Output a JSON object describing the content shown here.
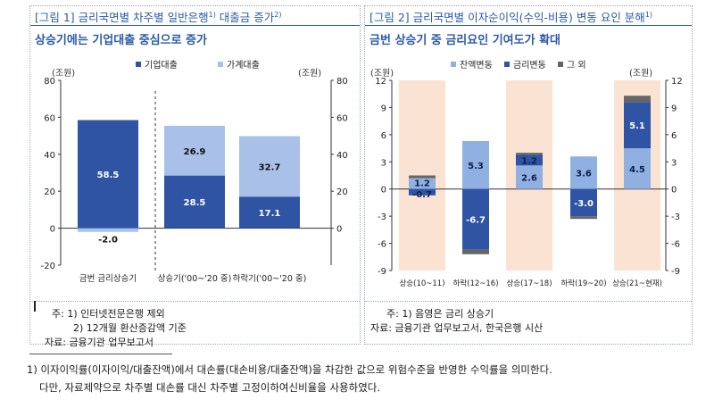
{
  "left_panel": {
    "title_prefix": "[그림 1] 금리국면별 차주별 일반은행",
    "title_sup1": "1)",
    "title_mid": " 대출금 증가",
    "title_sup2": "2)",
    "subtitle": "상승기에는 기업대출 중심으로 증가",
    "note1": "주: 1) 인터넷전문은행 제외",
    "note2": "2) 12개월 환산증감액 기준",
    "source": "자료: 금융기관 업무보고서"
  },
  "right_panel": {
    "title_prefix": "[그림 2] 금리국면별 이자순이익(수익-비용) 변동 요인 분해",
    "title_sup": "1)",
    "subtitle": "금번 상승기 중 금리요인 기여도가 확대",
    "note1": "주: 1) 음영은 금리 상승기",
    "source": "자료: 금융기관 업무보고서, 한국은행 시산"
  },
  "footnote": {
    "line1": "1) 이자이익률(이자이익/대출잔액)에서 대손률(대손비용/대출잔액)을 차감한 값으로 위험수준을 반영한 수익률을 의미한다.",
    "line2": "다만, 자료제약으로 차주별 대손률 대신 차주별 고정이하여신비율을 사용하였다."
  },
  "chart_data": [
    {
      "type": "bar",
      "stacked": true,
      "unit_left": "(조원)",
      "unit_right": "(조원)",
      "categories": [
        "금번 금리상승기",
        "상승기('00~'20 중)",
        "하락기('00~'20 중)"
      ],
      "series": [
        {
          "name": "기업대출",
          "values": [
            58.5,
            28.5,
            17.1
          ],
          "color": "#2e54a3"
        },
        {
          "name": "가계대출",
          "values": [
            -2.0,
            26.9,
            32.7
          ],
          "color": "#a9c1e8"
        }
      ],
      "ylim": [
        -20,
        80
      ],
      "yticks": [
        -20,
        0,
        20,
        40,
        60,
        80
      ],
      "right_yticks": [
        0,
        20,
        40,
        60,
        80
      ],
      "legend_position": "top",
      "grid": false
    },
    {
      "type": "bar",
      "stacked": true,
      "unit_left": "(조원)",
      "unit_right": "(조원)",
      "categories": [
        "상승(10~11)",
        "하락(12~16)",
        "상승(17~18)",
        "하락(19~20)",
        "상승(21~현재)"
      ],
      "shaded": [
        true,
        false,
        true,
        false,
        true
      ],
      "series": [
        {
          "name": "잔액변동",
          "values": [
            1.2,
            5.3,
            2.6,
            3.6,
            4.5
          ],
          "color": "#8fb0e0"
        },
        {
          "name": "금리변동",
          "values": [
            -0.7,
            -6.7,
            1.2,
            -3.0,
            5.1
          ],
          "color": "#2e54a3"
        },
        {
          "name": "그 외",
          "values": [
            0.3,
            -0.5,
            0.2,
            -0.3,
            0.7
          ],
          "color": "#666666"
        }
      ],
      "labels": [
        [
          "1.2",
          "-0.7"
        ],
        [
          "5.3",
          "-6.7"
        ],
        [
          "2.6",
          "1.2"
        ],
        [
          "3.6",
          "-3.0"
        ],
        [
          "4.5",
          "5.1"
        ]
      ],
      "ylim": [
        -9,
        12
      ],
      "yticks": [
        -9,
        -6,
        -3,
        0,
        3,
        6,
        9,
        12
      ],
      "legend_position": "top",
      "grid": false
    }
  ]
}
